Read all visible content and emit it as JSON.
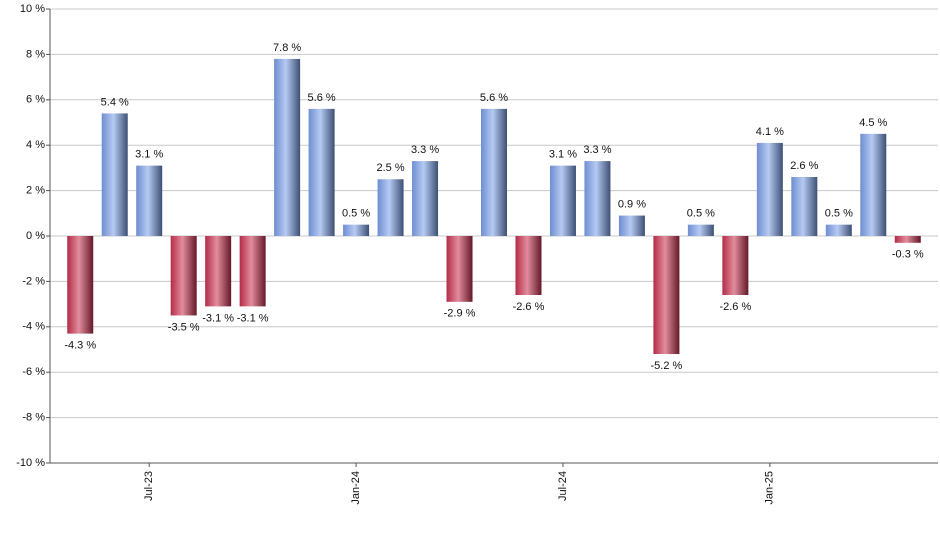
{
  "chart_data": {
    "type": "bar",
    "categories": [
      null,
      null,
      "Jul-23",
      null,
      null,
      null,
      null,
      null,
      "Jan-24",
      null,
      null,
      null,
      null,
      null,
      "Jul-24",
      null,
      null,
      null,
      null,
      null,
      "Jan-25",
      null,
      null,
      null,
      null
    ],
    "values": [
      -4.3,
      5.4,
      3.1,
      -3.5,
      -3.1,
      -3.1,
      7.8,
      5.6,
      0.5,
      2.5,
      3.3,
      -2.9,
      5.6,
      -2.6,
      3.1,
      3.3,
      0.9,
      -5.2,
      0.5,
      -2.6,
      4.1,
      2.6,
      0.5,
      4.5,
      -0.3
    ],
    "value_labels": [
      "-4.3 %",
      "5.4 %",
      "3.1 %",
      "-3.5 %",
      "-3.1 %",
      "-3.1 %",
      "7.8 %",
      "5.6 %",
      "0.5 %",
      "2.5 %",
      "3.3 %",
      "-2.9 %",
      "5.6 %",
      "-2.6 %",
      "3.1 %",
      "3.3 %",
      "0.9 %",
      "-5.2 %",
      "0.5 %",
      "-2.6 %",
      "4.1 %",
      "2.6 %",
      "0.5 %",
      "4.5 %",
      "-0.3 %"
    ],
    "positive_color": "#7a9ee8",
    "negative_color": "#c8304f",
    "ylim": [
      -10,
      10
    ],
    "yticks": [
      {
        "value": -10,
        "label": "-10 %"
      },
      {
        "value": -8,
        "label": "-8 %"
      },
      {
        "value": -6,
        "label": "-6 %"
      },
      {
        "value": -4,
        "label": "-4 %"
      },
      {
        "value": -2,
        "label": "-2 %"
      },
      {
        "value": 0,
        "label": "0 %"
      },
      {
        "value": 2,
        "label": "2 %"
      },
      {
        "value": 4,
        "label": "4 %"
      },
      {
        "value": 6,
        "label": "6 %"
      },
      {
        "value": 8,
        "label": "8 %"
      },
      {
        "value": 10,
        "label": "10 %"
      }
    ],
    "grid": true
  }
}
